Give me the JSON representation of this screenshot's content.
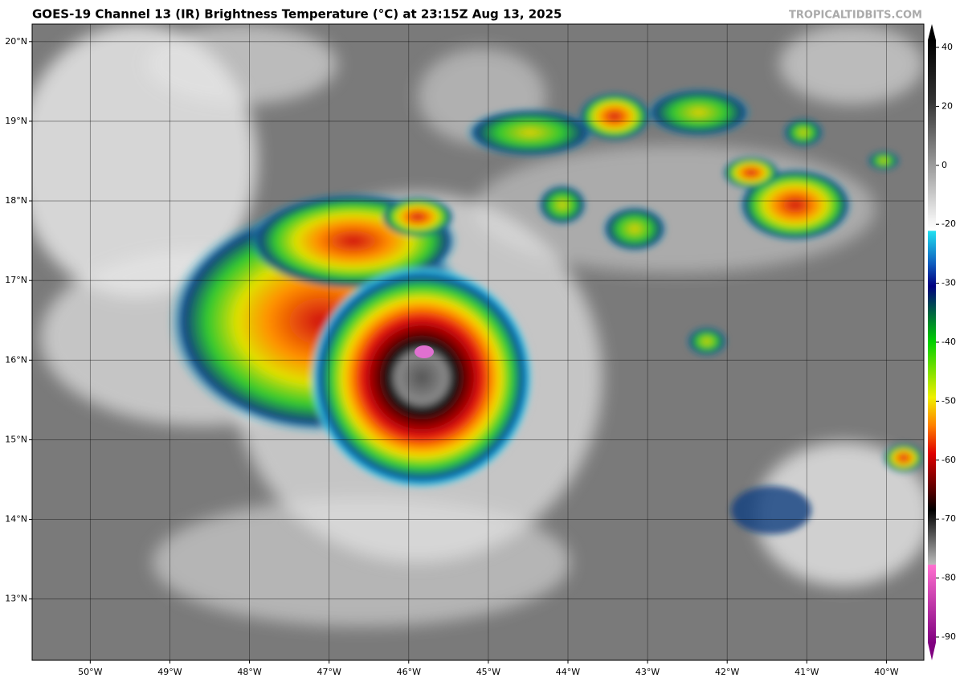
{
  "header": {
    "title": "GOES-19 Channel 13 (IR) Brightness Temperature (°C) at 23:15Z Aug 13, 2025",
    "watermark": "TROPICALTIDBITS.COM"
  },
  "map": {
    "xlim": [
      -50.73,
      -39.53
    ],
    "ylim": [
      12.23,
      20.22
    ],
    "xticks": [
      {
        "value": -50,
        "label": "50°W"
      },
      {
        "value": -49,
        "label": "49°W"
      },
      {
        "value": -48,
        "label": "48°W"
      },
      {
        "value": -47,
        "label": "47°W"
      },
      {
        "value": -46,
        "label": "46°W"
      },
      {
        "value": -45,
        "label": "45°W"
      },
      {
        "value": -44,
        "label": "44°W"
      },
      {
        "value": -43,
        "label": "43°W"
      },
      {
        "value": -42,
        "label": "42°W"
      },
      {
        "value": -41,
        "label": "41°W"
      },
      {
        "value": -40,
        "label": "40°W"
      }
    ],
    "yticks": [
      {
        "value": 13,
        "label": "13°N"
      },
      {
        "value": 14,
        "label": "14°N"
      },
      {
        "value": 15,
        "label": "15°N"
      },
      {
        "value": 16,
        "label": "16°N"
      },
      {
        "value": 17,
        "label": "17°N"
      },
      {
        "value": 18,
        "label": "18°N"
      },
      {
        "value": 19,
        "label": "19°N"
      },
      {
        "value": 20,
        "label": "20°N"
      }
    ]
  },
  "colorbar": {
    "ticks": [
      40,
      20,
      0,
      -20,
      -30,
      -40,
      -50,
      -60,
      -70,
      -80,
      -90
    ]
  }
}
